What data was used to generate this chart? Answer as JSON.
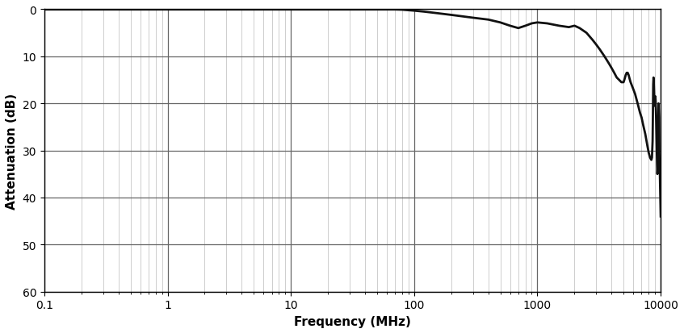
{
  "xlabel": "Frequency (MHz)",
  "ylabel": "Attenuation (dB)",
  "xmin": 0.1,
  "xmax": 10000,
  "ymin": 0,
  "ymax": 60,
  "yticks": [
    0,
    10,
    20,
    30,
    40,
    50,
    60
  ],
  "ytick_labels": [
    "0",
    "10",
    "20",
    "30",
    "40",
    "50",
    "60"
  ],
  "line_color": "#111111",
  "line_width": 2.0,
  "background_color": "#ffffff",
  "major_grid_color": "#666666",
  "minor_grid_color": "#bbbbbb",
  "major_grid_lw": 0.9,
  "minor_grid_lw": 0.5,
  "curve_points": {
    "freq_mhz": [
      0.1,
      0.2,
      0.3,
      0.5,
      0.7,
      1.0,
      2.0,
      3.0,
      5.0,
      7.0,
      10.0,
      15.0,
      20.0,
      30.0,
      50.0,
      60.0,
      70.0,
      80.0,
      100.0,
      120.0,
      150.0,
      200.0,
      300.0,
      400.0,
      500.0,
      600.0,
      700.0,
      800.0,
      900.0,
      1000.0,
      1200.0,
      1500.0,
      1800.0,
      2000.0,
      2200.0,
      2500.0,
      2800.0,
      3000.0,
      3200.0,
      3500.0,
      3800.0,
      4000.0,
      4200.0,
      4400.0,
      4600.0,
      4800.0,
      5000.0,
      5100.0,
      5200.0,
      5300.0,
      5400.0,
      5500.0,
      5600.0,
      5700.0,
      5800.0,
      6000.0,
      6200.0,
      6500.0,
      6800.0,
      7000.0,
      7200.0,
      7500.0,
      7800.0,
      8000.0,
      8200.0,
      8400.0,
      8500.0,
      8600.0,
      8650.0,
      8700.0,
      8750.0,
      8800.0,
      8850.0,
      8900.0,
      8950.0,
      9000.0,
      9050.0,
      9100.0,
      9150.0,
      9200.0,
      9250.0,
      9300.0,
      9350.0,
      9400.0,
      9450.0,
      9500.0,
      9550.0,
      9600.0,
      9650.0,
      9700.0,
      9750.0,
      9800.0,
      9850.0,
      9900.0,
      9950.0,
      10000.0
    ],
    "atten_db": [
      0.05,
      0.05,
      0.05,
      0.05,
      0.05,
      0.05,
      0.05,
      0.05,
      0.05,
      0.05,
      0.05,
      0.05,
      0.05,
      0.05,
      0.05,
      0.05,
      0.05,
      0.1,
      0.3,
      0.5,
      0.8,
      1.2,
      1.8,
      2.2,
      2.8,
      3.5,
      4.0,
      3.5,
      3.0,
      2.8,
      3.0,
      3.5,
      3.8,
      3.5,
      4.0,
      5.0,
      6.5,
      7.5,
      8.5,
      10.0,
      11.5,
      12.5,
      13.5,
      14.5,
      15.0,
      15.5,
      15.5,
      14.8,
      14.0,
      13.5,
      13.5,
      14.0,
      14.8,
      15.5,
      16.0,
      17.0,
      18.0,
      20.0,
      22.0,
      23.0,
      24.5,
      26.5,
      29.0,
      30.5,
      31.5,
      32.0,
      31.5,
      28.0,
      22.0,
      16.0,
      14.5,
      16.0,
      18.0,
      20.0,
      20.5,
      19.0,
      18.5,
      19.5,
      21.5,
      24.0,
      27.0,
      30.0,
      33.0,
      35.0,
      34.0,
      30.0,
      24.0,
      20.0,
      21.5,
      23.0,
      30.5,
      33.0,
      35.0,
      38.0,
      41.0,
      44.0
    ]
  }
}
